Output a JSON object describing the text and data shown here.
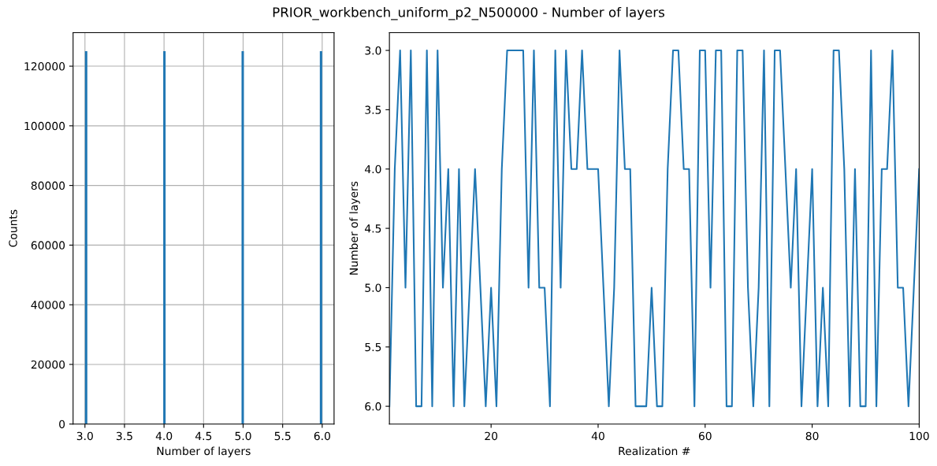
{
  "chart_data": [
    {
      "type": "histogram",
      "title": "PRIOR_workbench_uniform_p2_N500000 - Number of layers",
      "xlabel": "Number of layers",
      "ylabel": "Counts",
      "color": "#1f77b4",
      "grid": true,
      "bins": [
        3.0,
        3.03,
        3.06,
        3.09,
        3.12,
        3.15,
        3.18,
        3.21,
        3.24,
        3.27,
        3.3,
        3.33,
        3.36,
        3.39,
        3.42,
        3.45,
        3.48,
        3.51,
        3.54,
        3.57,
        3.6,
        3.63,
        3.66,
        3.69,
        3.72,
        3.75,
        3.78,
        3.81,
        3.84,
        3.87,
        3.9,
        3.93,
        3.96,
        3.99,
        4.02,
        4.05,
        4.08,
        4.11,
        4.14,
        4.17,
        4.2,
        4.23,
        4.26,
        4.29,
        4.32,
        4.35,
        4.38,
        4.41,
        4.44,
        4.47,
        4.5,
        4.53,
        4.56,
        4.59,
        4.62,
        4.65,
        4.68,
        4.71,
        4.74,
        4.77,
        4.8,
        4.83,
        4.86,
        4.89,
        4.92,
        4.95,
        4.98,
        5.01,
        5.04,
        5.07,
        5.1,
        5.13,
        5.16,
        5.19,
        5.22,
        5.25,
        5.28,
        5.31,
        5.34,
        5.37,
        5.4,
        5.43,
        5.46,
        5.49,
        5.52,
        5.55,
        5.58,
        5.61,
        5.64,
        5.67,
        5.7,
        5.73,
        5.76,
        5.79,
        5.82,
        5.85,
        5.88,
        5.91,
        5.94,
        5.97,
        6.0
      ],
      "values": [
        125000,
        0,
        0,
        0,
        0,
        0,
        0,
        0,
        0,
        0,
        0,
        0,
        0,
        0,
        0,
        0,
        0,
        0,
        0,
        0,
        0,
        0,
        0,
        0,
        0,
        0,
        0,
        0,
        0,
        0,
        0,
        0,
        0,
        125000,
        0,
        0,
        0,
        0,
        0,
        0,
        0,
        0,
        0,
        0,
        0,
        0,
        0,
        0,
        0,
        0,
        0,
        0,
        0,
        0,
        0,
        0,
        0,
        0,
        0,
        0,
        0,
        0,
        0,
        0,
        0,
        0,
        125000,
        0,
        0,
        0,
        0,
        0,
        0,
        0,
        0,
        0,
        0,
        0,
        0,
        0,
        0,
        0,
        0,
        0,
        0,
        0,
        0,
        0,
        0,
        0,
        0,
        0,
        0,
        0,
        0,
        0,
        0,
        0,
        0,
        125000
      ],
      "xlim": [
        2.85,
        6.15
      ],
      "ylim": [
        0,
        131250
      ],
      "xticks": [
        {
          "value": 3.0,
          "label": "3.0"
        },
        {
          "value": 3.5,
          "label": "3.5"
        },
        {
          "value": 4.0,
          "label": "4.0"
        },
        {
          "value": 4.5,
          "label": "4.5"
        },
        {
          "value": 5.0,
          "label": "5.0"
        },
        {
          "value": 5.5,
          "label": "5.5"
        },
        {
          "value": 6.0,
          "label": "6.0"
        }
      ],
      "yticks": [
        0,
        20000,
        40000,
        60000,
        80000,
        100000,
        120000
      ]
    },
    {
      "type": "line",
      "xlabel": "Realization #",
      "ylabel": "Number of layers",
      "color": "#1f77b4",
      "grid": false,
      "x": [
        1,
        2,
        3,
        4,
        5,
        6,
        7,
        8,
        9,
        10,
        11,
        12,
        13,
        14,
        15,
        16,
        17,
        18,
        19,
        20,
        21,
        22,
        23,
        24,
        25,
        26,
        27,
        28,
        29,
        30,
        31,
        32,
        33,
        34,
        35,
        36,
        37,
        38,
        39,
        40,
        41,
        42,
        43,
        44,
        45,
        46,
        47,
        48,
        49,
        50,
        51,
        52,
        53,
        54,
        55,
        56,
        57,
        58,
        59,
        60,
        61,
        62,
        63,
        64,
        65,
        66,
        67,
        68,
        69,
        70,
        71,
        72,
        73,
        74,
        75,
        76,
        77,
        78,
        79,
        80,
        81,
        82,
        83,
        84,
        85,
        86,
        87,
        88,
        89,
        90,
        91,
        92,
        93,
        94,
        95,
        96,
        97,
        98,
        99,
        100
      ],
      "values": [
        6,
        4,
        3,
        5,
        3,
        6,
        6,
        3,
        6,
        3,
        5,
        4,
        6,
        4,
        6,
        5,
        4,
        5,
        6,
        5,
        6,
        4,
        3,
        3,
        3,
        3,
        5,
        3,
        5,
        5,
        6,
        3,
        5,
        3,
        4,
        4,
        3,
        4,
        4,
        4,
        5,
        6,
        5,
        3,
        4,
        4,
        6,
        6,
        6,
        5,
        6,
        6,
        4,
        3,
        3,
        4,
        4,
        6,
        3,
        3,
        5,
        3,
        3,
        6,
        6,
        3,
        3,
        5,
        6,
        5,
        3,
        6,
        3,
        3,
        4,
        5,
        4,
        6,
        5,
        4,
        6,
        5,
        6,
        3,
        3,
        4,
        6,
        4,
        6,
        6,
        3,
        6,
        4,
        4,
        3,
        5,
        5,
        6,
        5,
        4
      ],
      "xlim": [
        1,
        100
      ],
      "ylim": [
        6.15,
        2.85
      ],
      "xticks": [
        20,
        40,
        60,
        80,
        100
      ],
      "yticks": [
        {
          "value": 3.0,
          "label": "3.0"
        },
        {
          "value": 3.5,
          "label": "3.5"
        },
        {
          "value": 4.0,
          "label": "4.0"
        },
        {
          "value": 4.5,
          "label": "4.5"
        },
        {
          "value": 5.0,
          "label": "5.0"
        },
        {
          "value": 5.5,
          "label": "5.5"
        },
        {
          "value": 6.0,
          "label": "6.0"
        }
      ]
    }
  ]
}
